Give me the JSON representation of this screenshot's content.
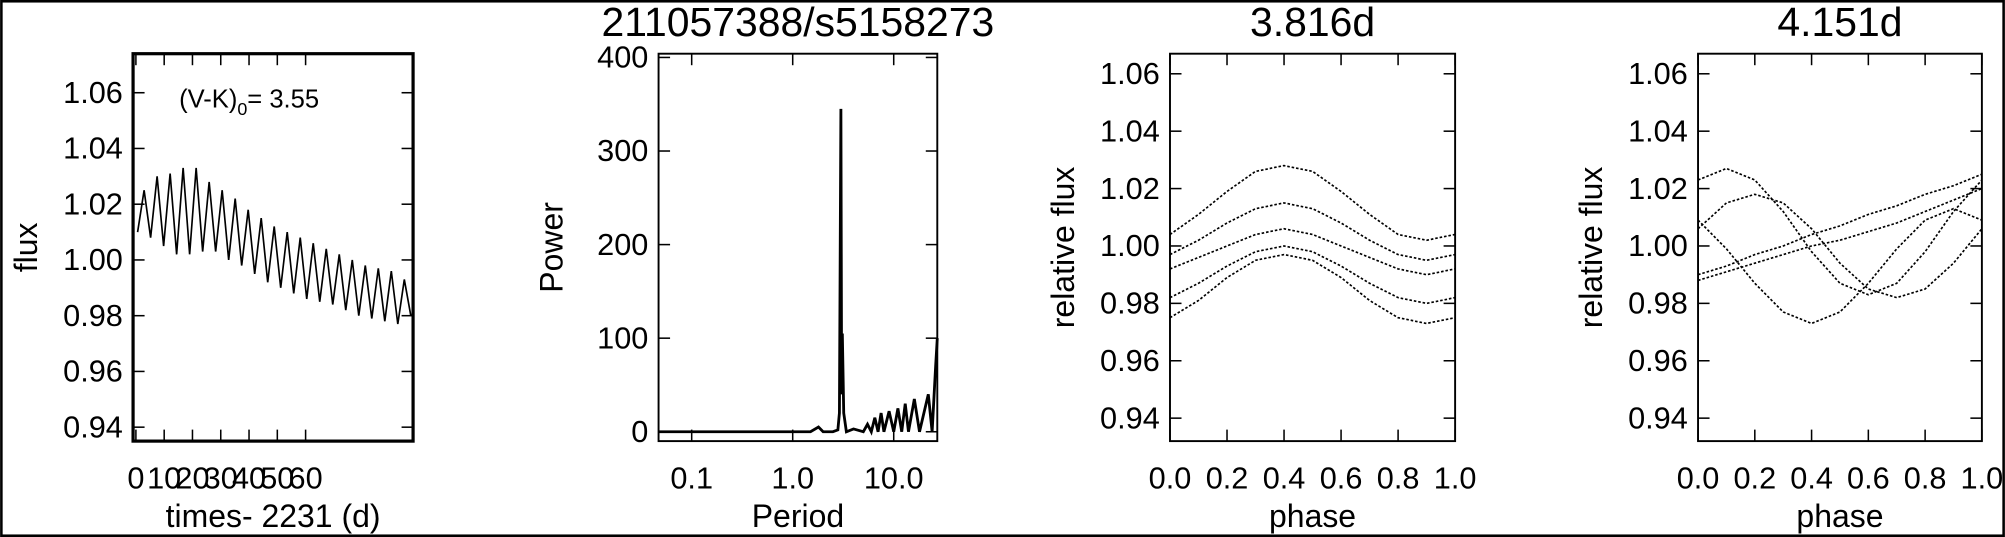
{
  "chart_data": [
    {
      "type": "line",
      "xlabel": "times- 2231 (d)",
      "ylabel": "flux",
      "annotation": {
        "text": "(V-K)",
        "subscript": "0",
        "suffix": "= 3.55"
      },
      "x": [
        0.6,
        2.9,
        5.2,
        7.5,
        9.8,
        12.1,
        14.4,
        16.7,
        19.0,
        21.3,
        23.6,
        25.9,
        28.2,
        30.5,
        32.8,
        35.1,
        37.4,
        39.7,
        42.0,
        44.3,
        46.6,
        48.9,
        51.2,
        53.5,
        55.8,
        58.1,
        60.4,
        62.7,
        65.0,
        67.3,
        69.6,
        71.9,
        74.2,
        76.5,
        78.8,
        81.1,
        83.4,
        85.7,
        88.0,
        90.3,
        92.6,
        94.9,
        97.2
      ],
      "series": [
        {
          "color": "#000000",
          "values": [
            1.01,
            1.025,
            1.008,
            1.03,
            1.005,
            1.031,
            1.002,
            1.033,
            1.002,
            1.033,
            1.003,
            1.028,
            1.003,
            1.025,
            1.0,
            1.022,
            0.998,
            1.018,
            0.995,
            1.015,
            0.992,
            1.012,
            0.99,
            1.01,
            0.988,
            1.008,
            0.986,
            1.006,
            0.985,
            1.004,
            0.984,
            1.002,
            0.982,
            1.0,
            0.98,
            0.998,
            0.979,
            0.997,
            0.978,
            0.996,
            0.977,
            0.993,
            0.98
          ]
        }
      ],
      "xlim": [
        -1,
        98
      ],
      "xticks": [
        0,
        10,
        20,
        30,
        40,
        50,
        60
      ],
      "ylim": [
        0.935,
        1.074
      ],
      "yticks": [
        0.94,
        0.96,
        0.98,
        {
          "value": 1,
          "label": "1.00"
        },
        1.02,
        1.04,
        1.06
      ]
    },
    {
      "type": "line",
      "title": "211057388/s5158273",
      "xlabel": "Period",
      "ylabel": "Power",
      "xscale": "log",
      "x": [
        0.047,
        0.5,
        1.5,
        1.8,
        2.0,
        2.5,
        2.8,
        2.9,
        3.0,
        3.05,
        3.1,
        3.2,
        3.4,
        4,
        5,
        5.5,
        6,
        6.5,
        7,
        7.5,
        8,
        9,
        10,
        11,
        12,
        13,
        14,
        16,
        18,
        22,
        24,
        26,
        27
      ],
      "series": [
        {
          "color": "#000000",
          "values": [
            0,
            0,
            0,
            5,
            0,
            0,
            2,
            20,
            345,
            40,
            105,
            20,
            0,
            3,
            0,
            8,
            0,
            15,
            0,
            20,
            0,
            22,
            0,
            25,
            0,
            30,
            0,
            35,
            0,
            40,
            0,
            70,
            100
          ]
        }
      ],
      "xlim": [
        0.047,
        27
      ],
      "xticks": [
        0.1,
        {
          "value": 1,
          "label": "1.0"
        },
        {
          "value": 10,
          "label": "10.0"
        }
      ],
      "ylim": [
        -10,
        404
      ],
      "yticks": [
        0,
        100,
        200,
        300,
        400
      ]
    },
    {
      "type": "line",
      "title": "3.816d",
      "xlabel": "phase",
      "ylabel": "relative flux",
      "x": [
        0,
        0.1,
        0.2,
        0.3,
        0.4,
        0.5,
        0.6,
        0.7,
        0.8,
        0.9,
        1
      ],
      "series": [
        {
          "color": "#000000",
          "values": [
            1.004,
            1.011,
            1.019,
            1.026,
            1.028,
            1.026,
            1.019,
            1.011,
            1.004,
            1.002,
            1.004
          ]
        },
        {
          "color": "#000000",
          "values": [
            0.997,
            1.002,
            1.008,
            1.013,
            1.015,
            1.013,
            1.008,
            1.002,
            0.997,
            0.995,
            0.997
          ]
        },
        {
          "color": "#000000",
          "values": [
            0.992,
            0.996,
            1.0,
            1.004,
            1.006,
            1.004,
            1.0,
            0.996,
            0.992,
            0.99,
            0.992
          ]
        },
        {
          "color": "#000000",
          "values": [
            0.982,
            0.987,
            0.993,
            0.998,
            1.0,
            0.998,
            0.993,
            0.987,
            0.982,
            0.98,
            0.982
          ]
        },
        {
          "color": "#000000",
          "values": [
            0.975,
            0.981,
            0.989,
            0.995,
            0.997,
            0.995,
            0.989,
            0.981,
            0.975,
            0.973,
            0.975
          ]
        }
      ],
      "xlim": [
        0,
        1
      ],
      "xticks": [
        {
          "value": 0,
          "label": "0.0"
        },
        0.2,
        0.4,
        0.6,
        0.8,
        {
          "value": 1,
          "label": "1.0"
        }
      ],
      "ylim": [
        0.932,
        1.067
      ],
      "yticks": [
        0.94,
        0.96,
        0.98,
        {
          "value": 1,
          "label": "1.00"
        },
        1.02,
        1.04,
        1.06
      ]
    },
    {
      "type": "line",
      "title": "4.151d",
      "xlabel": "phase",
      "ylabel": "relative flux",
      "x": [
        0,
        0.1,
        0.2,
        0.3,
        0.4,
        0.5,
        0.6,
        0.7,
        0.8,
        0.9,
        1
      ],
      "series": [
        {
          "color": "#000000",
          "values": [
            1.023,
            1.027,
            1.023,
            1.012,
            0.998,
            0.987,
            0.983,
            0.987,
            0.998,
            1.012,
            1.023
          ]
        },
        {
          "color": "#000000",
          "values": [
            1.006,
            1.015,
            1.018,
            1.015,
            1.006,
            0.994,
            0.985,
            0.982,
            0.985,
            0.994,
            1.006
          ]
        },
        {
          "color": "#000000",
          "values": [
            1.009,
            0.999,
            0.987,
            0.977,
            0.973,
            0.977,
            0.987,
            0.999,
            1.009,
            1.013,
            1.009
          ]
        },
        {
          "color": "#000000",
          "values": [
            0.99,
            0.993,
            0.997,
            1.0,
            1.004,
            1.007,
            1.011,
            1.014,
            1.018,
            1.021,
            1.025
          ]
        },
        {
          "color": "#000000",
          "values": [
            0.988,
            0.991,
            0.994,
            0.997,
            1.0,
            1.002,
            1.005,
            1.008,
            1.012,
            1.016,
            1.02
          ]
        }
      ],
      "xlim": [
        0,
        1
      ],
      "xticks": [
        {
          "value": 0,
          "label": "0.0"
        },
        0.2,
        0.4,
        0.6,
        0.8,
        {
          "value": 1,
          "label": "1.0"
        }
      ],
      "ylim": [
        0.932,
        1.067
      ],
      "yticks": [
        0.94,
        0.96,
        0.98,
        {
          "value": 1,
          "label": "1.00"
        },
        1.02,
        1.04,
        1.06
      ]
    }
  ]
}
